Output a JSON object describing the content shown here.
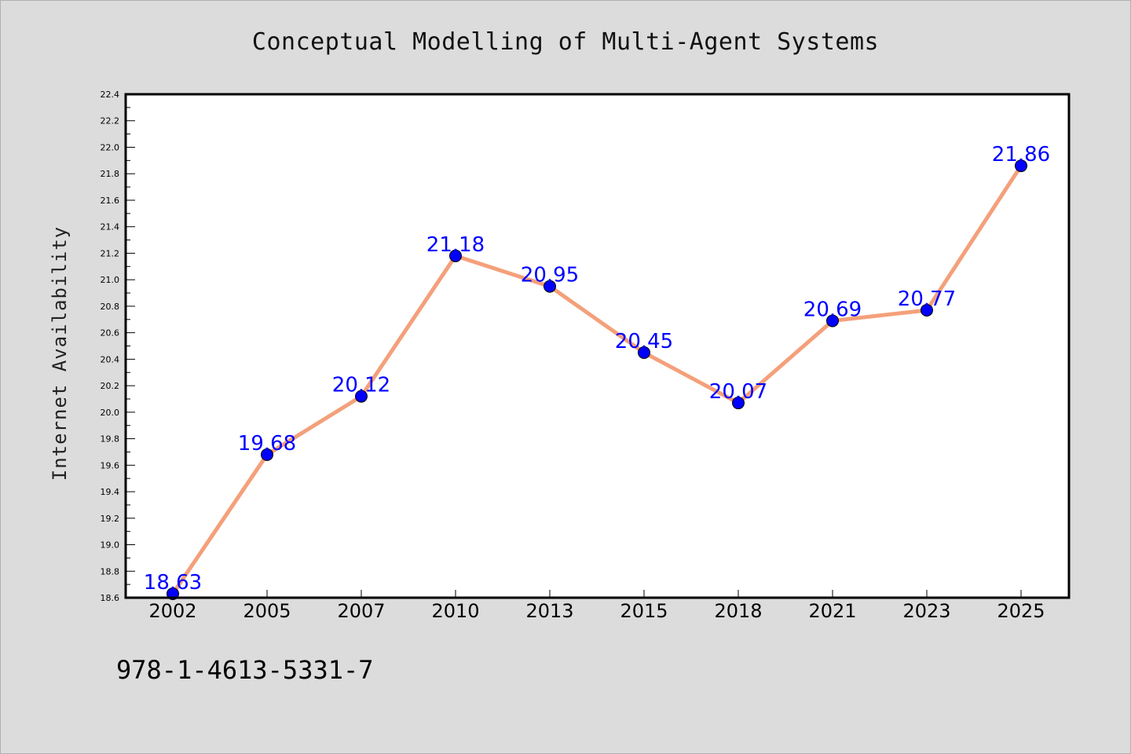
{
  "colors": {
    "background": "#dcdcdc",
    "plot_background": "#ffffff",
    "line": "#f4a07a",
    "marker": "#0000ff",
    "data_label": "#0000ff",
    "axis": "#000000"
  },
  "footer": {
    "isbn": "978-1-4613-5331-7"
  },
  "chart_data": {
    "type": "line",
    "title": "Conceptual Modelling of Multi-Agent Systems",
    "xlabel": "",
    "ylabel": "Internet Availability",
    "categories": [
      "2002",
      "2005",
      "2007",
      "2010",
      "2013",
      "2015",
      "2018",
      "2021",
      "2023",
      "2025"
    ],
    "series": [
      {
        "values": [
          18.63,
          19.68,
          20.12,
          21.18,
          20.95,
          20.45,
          20.07,
          20.69,
          20.77,
          21.86
        ],
        "labels": [
          "18.63",
          "19.68",
          "20.12",
          "21.18",
          "20.95",
          "20.45",
          "20.07",
          "20.69",
          "20.77",
          "21.86"
        ]
      }
    ],
    "ylim": [
      18.6,
      22.4
    ],
    "yticks": [
      "18.6",
      "18.8",
      "19.0",
      "19.2",
      "19.4",
      "19.6",
      "19.8",
      "20.0",
      "20.2",
      "20.4",
      "20.6",
      "20.8",
      "21.0",
      "21.2",
      "21.4",
      "21.6",
      "21.8",
      "22.0",
      "22.2",
      "22.4"
    ],
    "grid": false,
    "legend": "none",
    "markers": true,
    "data_labels": true
  }
}
